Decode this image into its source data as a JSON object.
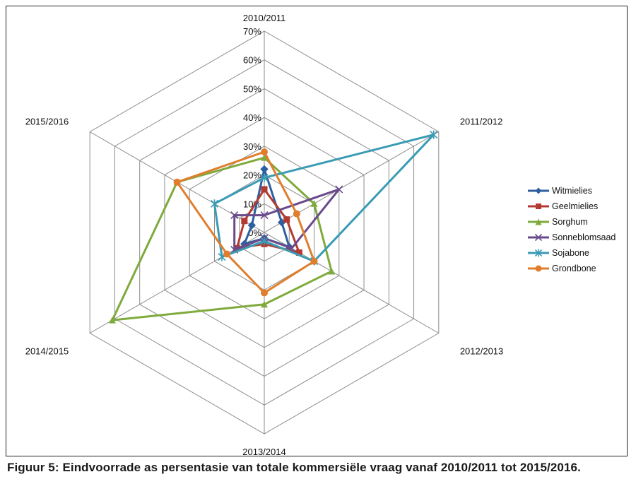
{
  "chart_data": {
    "type": "radar",
    "axes": [
      "2010/2011",
      "2011/2012",
      "2012/2013",
      "2013/2014",
      "2014/2015",
      "2015/2016"
    ],
    "ticks": [
      "0%",
      "10%",
      "20%",
      "30%",
      "40%",
      "50%",
      "60%",
      "70%"
    ],
    "tick_values": [
      0,
      10,
      20,
      30,
      40,
      50,
      60,
      70
    ],
    "rmax": 70,
    "grid": true,
    "legend": "right",
    "series": [
      {
        "name": "Witmielies",
        "color": "#2e5f9e",
        "marker": "diamond",
        "values": [
          22,
          7,
          10,
          2,
          8,
          5
        ]
      },
      {
        "name": "Geelmielies",
        "color": "#b23a32",
        "marker": "square",
        "values": [
          15,
          9,
          14,
          4,
          11,
          8
        ]
      },
      {
        "name": "Sorghum",
        "color": "#7faa3c",
        "marker": "triangle",
        "values": [
          26,
          20,
          27,
          25,
          61,
          35
        ]
      },
      {
        "name": "Sonneblomsaad",
        "color": "#6a4a8c",
        "marker": "x",
        "values": [
          6,
          30,
          11,
          2,
          12,
          12
        ]
      },
      {
        "name": "Sojabone",
        "color": "#3a9bb5",
        "marker": "star",
        "values": [
          19,
          68,
          20,
          3,
          17,
          20
        ]
      },
      {
        "name": "Grondbone",
        "color": "#e07e2e",
        "marker": "circle",
        "values": [
          28,
          13,
          20,
          21,
          15,
          35
        ]
      }
    ]
  },
  "caption": "Figuur 5: Eindvoorrade as persentasie van totale kommersiële vraag vanaf 2010/2011 tot 2015/2016."
}
